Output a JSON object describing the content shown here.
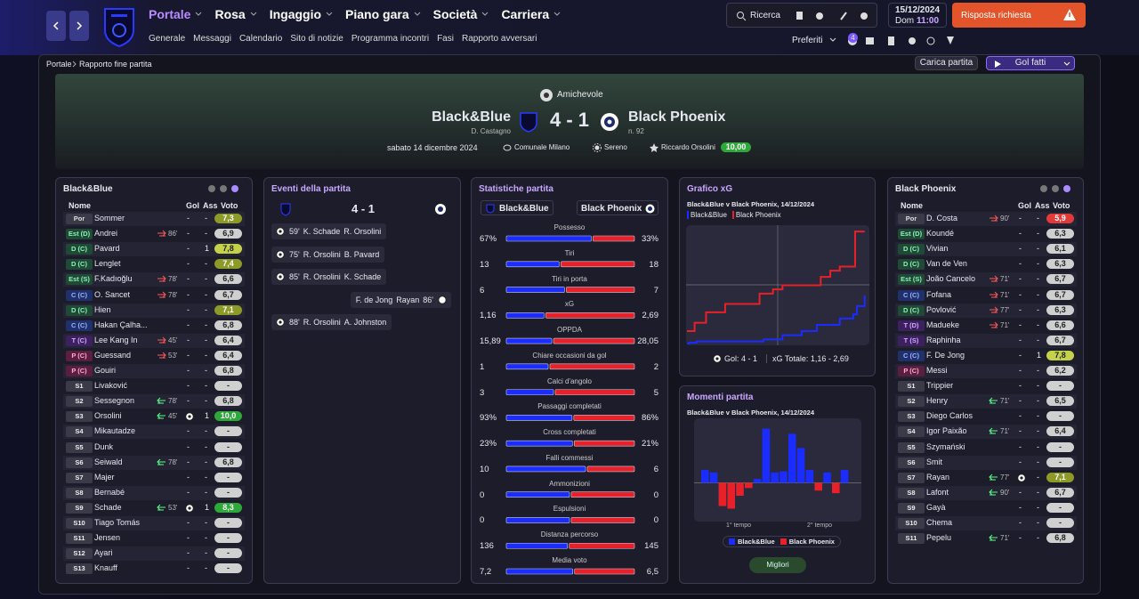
{
  "nav": {
    "menus": [
      "Portale",
      "Rosa",
      "Ingaggio",
      "Piano gara",
      "Società",
      "Carriera"
    ],
    "submenu": [
      "Generale",
      "Messaggi",
      "Calendario",
      "Sito di notizie",
      "Programma incontri",
      "Fasi",
      "Rapporto avversari"
    ],
    "search": "Ricerca",
    "date": "15/12/2024",
    "day": "Dom",
    "time": "11:00",
    "alert": "Risposta richiesta",
    "favorites": "Preferiti",
    "badge": "4"
  },
  "breadcrumb": [
    "Portale",
    "Rapporto fine partita"
  ],
  "actions": {
    "load": "Carica partita",
    "goals": "Gol fatti"
  },
  "match": {
    "competition": "Amichevole",
    "home": "Black&Blue",
    "home_manager": "D. Castagno",
    "score": "4 - 1",
    "away": "Black Phoenix",
    "away_note": "n. 92",
    "date": "sabato 14 dicembre 2024",
    "stadium": "Comunale Milano",
    "weather": "Sereno",
    "referee": "Riccardo Orsolini",
    "referee_rating": "10,00"
  },
  "home_lineup": {
    "team": "Black&Blue",
    "columns": [
      "Nome",
      "Gol",
      "Ass",
      "Voto"
    ],
    "rows": [
      {
        "pos": "Por",
        "name": "Sommer",
        "gol": "-",
        "ass": "-",
        "voto": "7,3"
      },
      {
        "pos": "Est (D)",
        "name": "Andrei",
        "sub": {
          "dir": "out",
          "minute": "86'"
        },
        "gol": "-",
        "ass": "-",
        "voto": "6,9"
      },
      {
        "pos": "D (C)",
        "name": "Pavard",
        "gol": "-",
        "ass": "1",
        "voto": "7,8"
      },
      {
        "pos": "D (C)",
        "name": "Lenglet",
        "gol": "-",
        "ass": "-",
        "voto": "7,4"
      },
      {
        "pos": "Est (S)",
        "name": "F.Kadıoğlu",
        "sub": {
          "dir": "out",
          "minute": "78'"
        },
        "gol": "-",
        "ass": "-",
        "voto": "6,6"
      },
      {
        "pos": "C (C)",
        "name": "O. Sancet",
        "sub": {
          "dir": "out",
          "minute": "78'"
        },
        "gol": "-",
        "ass": "-",
        "voto": "6,7"
      },
      {
        "pos": "D (C)",
        "name": "Hien",
        "gol": "-",
        "ass": "-",
        "voto": "7,1"
      },
      {
        "pos": "C (C)",
        "name": "Hakan Çalha...",
        "gol": "-",
        "ass": "-",
        "voto": "6,8"
      },
      {
        "pos": "T (C)",
        "name": "Lee Kang In",
        "sub": {
          "dir": "out",
          "minute": "45'"
        },
        "gol": "-",
        "ass": "-",
        "voto": "6,4"
      },
      {
        "pos": "P (C)",
        "name": "Guessand",
        "sub": {
          "dir": "out",
          "minute": "53'"
        },
        "gol": "-",
        "ass": "-",
        "voto": "6,4"
      },
      {
        "pos": "P (C)",
        "name": "Gouiri",
        "gol": "-",
        "ass": "-",
        "voto": "6,8"
      },
      {
        "pos": "S1",
        "name": "Livaković",
        "gol": "-",
        "ass": "-",
        "voto": "-"
      },
      {
        "pos": "S2",
        "name": "Sessegnon",
        "sub": {
          "dir": "in",
          "minute": "78'"
        },
        "gol": "-",
        "ass": "-",
        "voto": "6,8"
      },
      {
        "pos": "S3",
        "name": "Orsolini",
        "sub": {
          "dir": "in",
          "minute": "45'"
        },
        "goal_icon": true,
        "ass": "1",
        "voto": "10,0"
      },
      {
        "pos": "S4",
        "name": "Mikautadze",
        "gol": "-",
        "ass": "-",
        "voto": "-"
      },
      {
        "pos": "S5",
        "name": "Dunk",
        "gol": "-",
        "ass": "-",
        "voto": "-"
      },
      {
        "pos": "S6",
        "name": "Seiwald",
        "sub": {
          "dir": "in",
          "minute": "78'"
        },
        "gol": "-",
        "ass": "-",
        "voto": "6,8"
      },
      {
        "pos": "S7",
        "name": "Majer",
        "gol": "-",
        "ass": "-",
        "voto": "-"
      },
      {
        "pos": "S8",
        "name": "Bernabé",
        "gol": "-",
        "ass": "-",
        "voto": "-"
      },
      {
        "pos": "S9",
        "name": "Schade",
        "sub": {
          "dir": "in",
          "minute": "53'"
        },
        "goal_icon": true,
        "ass": "1",
        "voto": "8,3"
      },
      {
        "pos": "S10",
        "name": "Tiago Tomás",
        "gol": "-",
        "ass": "-",
        "voto": "-"
      },
      {
        "pos": "S11",
        "name": "Jensen",
        "gol": "-",
        "ass": "-",
        "voto": "-"
      },
      {
        "pos": "S12",
        "name": "Ayari",
        "gol": "-",
        "ass": "-",
        "voto": "-"
      },
      {
        "pos": "S13",
        "name": "Knauff",
        "gol": "-",
        "ass": "-",
        "voto": "-"
      }
    ]
  },
  "away_lineup": {
    "team": "Black Phoenix",
    "columns": [
      "Nome",
      "Gol",
      "Ass",
      "Voto"
    ],
    "rows": [
      {
        "pos": "Por",
        "name": "D. Costa",
        "sub": {
          "dir": "out",
          "minute": "90'"
        },
        "gol": "-",
        "ass": "-",
        "voto": "5,9"
      },
      {
        "pos": "Est (D)",
        "name": "Koundé",
        "gol": "-",
        "ass": "-",
        "voto": "6,3"
      },
      {
        "pos": "D (C)",
        "name": "Vivian",
        "gol": "-",
        "ass": "-",
        "voto": "6,1"
      },
      {
        "pos": "D (C)",
        "name": "Van de Ven",
        "gol": "-",
        "ass": "-",
        "voto": "6,3"
      },
      {
        "pos": "Est (S)",
        "name": "João Cancelo",
        "sub": {
          "dir": "out",
          "minute": "71'"
        },
        "gol": "-",
        "ass": "-",
        "voto": "6,7"
      },
      {
        "pos": "C (C)",
        "name": "Fofana",
        "sub": {
          "dir": "out",
          "minute": "71'"
        },
        "gol": "-",
        "ass": "-",
        "voto": "6,7"
      },
      {
        "pos": "D (C)",
        "name": "Povlović",
        "sub": {
          "dir": "out",
          "minute": "77'"
        },
        "gol": "-",
        "ass": "-",
        "voto": "6,3"
      },
      {
        "pos": "T (D)",
        "name": "Madueke",
        "sub": {
          "dir": "out",
          "minute": "71'"
        },
        "gol": "-",
        "ass": "-",
        "voto": "6,6"
      },
      {
        "pos": "T (S)",
        "name": "Raphinha",
        "gol": "-",
        "ass": "-",
        "voto": "6,7"
      },
      {
        "pos": "C (C)",
        "name": "F. De Jong",
        "gol": "-",
        "ass": "1",
        "voto": "7,8"
      },
      {
        "pos": "P (C)",
        "name": "Messi",
        "gol": "-",
        "ass": "-",
        "voto": "6,2"
      },
      {
        "pos": "S1",
        "name": "Trippier",
        "gol": "-",
        "ass": "-",
        "voto": "-"
      },
      {
        "pos": "S2",
        "name": "Henry",
        "sub": {
          "dir": "in",
          "minute": "71'"
        },
        "gol": "-",
        "ass": "-",
        "voto": "6,5"
      },
      {
        "pos": "S3",
        "name": "Diego Carlos",
        "gol": "-",
        "ass": "-",
        "voto": "-"
      },
      {
        "pos": "S4",
        "name": "Igor Paixão",
        "sub": {
          "dir": "in",
          "minute": "71'"
        },
        "gol": "-",
        "ass": "-",
        "voto": "6,4"
      },
      {
        "pos": "S5",
        "name": "Szymański",
        "gol": "-",
        "ass": "-",
        "voto": "-"
      },
      {
        "pos": "S6",
        "name": "Smit",
        "gol": "-",
        "ass": "-",
        "voto": "-"
      },
      {
        "pos": "S7",
        "name": "Rayan",
        "sub": {
          "dir": "in",
          "minute": "77'"
        },
        "goal_icon": true,
        "ass": "-",
        "voto": "7,1"
      },
      {
        "pos": "S8",
        "name": "Lafont",
        "sub": {
          "dir": "in",
          "minute": "90'"
        },
        "gol": "-",
        "ass": "-",
        "voto": "6,7"
      },
      {
        "pos": "S9",
        "name": "Gayà",
        "gol": "-",
        "ass": "-",
        "voto": "-"
      },
      {
        "pos": "S10",
        "name": "Chema",
        "gol": "-",
        "ass": "-",
        "voto": "-"
      },
      {
        "pos": "S11",
        "name": "Pepelu",
        "sub": {
          "dir": "in",
          "minute": "71'"
        },
        "gol": "-",
        "ass": "-",
        "voto": "6,8"
      }
    ]
  },
  "events": {
    "title": "Eventi della partita",
    "score": "4 - 1",
    "rows": [
      {
        "minute": "59'",
        "scorer": "K. Schade",
        "assist": "R. Orsolini",
        "side": "home"
      },
      {
        "minute": "75'",
        "scorer": "R. Orsolini",
        "assist": "B. Pavard",
        "side": "home"
      },
      {
        "minute": "85'",
        "scorer": "R. Orsolini",
        "assist": "K. Schade",
        "side": "home"
      },
      {
        "minute": "86'",
        "scorer": "F. de Jong",
        "assist": "Rayan",
        "side": "away"
      },
      {
        "minute": "88'",
        "scorer": "R. Orsolini",
        "assist": "A. Johnston",
        "side": "home"
      }
    ]
  },
  "stats": {
    "title": "Statistiche partita",
    "home": "Black&Blue",
    "away": "Black Phoenix",
    "home_color": "#1a2cff",
    "away_color": "#e8202a",
    "rows": [
      {
        "label": "Possesso",
        "home": 67,
        "away": 33,
        "home_label": "67%",
        "away_label": "33%"
      },
      {
        "label": "Tiri",
        "home": 13,
        "away": 18
      },
      {
        "label": "Tiri in porta",
        "home": 6,
        "away": 7
      },
      {
        "label": "xG",
        "home": 1.16,
        "away": 2.69,
        "home_label": "1,16",
        "away_label": "2,69"
      },
      {
        "label": "OPPDA",
        "home": 15.89,
        "away": 28.05,
        "home_label": "15,89",
        "away_label": "28,05"
      },
      {
        "label": "Chiare occasioni da gol",
        "home": 1,
        "away": 2
      },
      {
        "label": "Calci d'angolo",
        "home": 3,
        "away": 5
      },
      {
        "label": "Passaggi completati",
        "home": 93,
        "away": 86,
        "home_label": "93%",
        "away_label": "86%"
      },
      {
        "label": "Cross completati",
        "home": 23,
        "away": 21,
        "home_label": "23%",
        "away_label": "21%"
      },
      {
        "label": "Falli commessi",
        "home": 10,
        "away": 6
      },
      {
        "label": "Ammonizioni",
        "home": 0,
        "away": 0
      },
      {
        "label": "Espulsioni",
        "home": 0,
        "away": 0
      },
      {
        "label": "Distanza percorso",
        "home": 136,
        "away": 145
      },
      {
        "label": "Media voto",
        "home": 7.2,
        "away": 6.5,
        "home_label": "7,2",
        "away_label": "6,5"
      }
    ]
  },
  "chart_data": [
    {
      "type": "line",
      "title": "Grafico xG",
      "subtitle": "Black&Blue v Black Phoenix, 14/12/2024",
      "xlim": [
        0,
        95
      ],
      "ylim": [
        0,
        2.8
      ],
      "series": [
        {
          "name": "Black&Blue",
          "color": "#1a2cff",
          "x": [
            0,
            1,
            5,
            40,
            50,
            60,
            68,
            80,
            87,
            89,
            93
          ],
          "values": [
            0,
            0.02,
            0.05,
            0.1,
            0.2,
            0.3,
            0.45,
            0.6,
            0.7,
            0.9,
            1.16
          ]
        },
        {
          "name": "Black Phoenix",
          "color": "#e8202a",
          "x": [
            0,
            4,
            10,
            20,
            38,
            45,
            50,
            70,
            75,
            80,
            88,
            93
          ],
          "values": [
            0.3,
            0.5,
            0.75,
            0.95,
            1.2,
            1.3,
            1.4,
            1.6,
            1.75,
            1.85,
            2.69,
            2.69
          ]
        }
      ],
      "goals_label": "Gol: 4 - 1",
      "total_label": "xG Totale: 1,16 - 2,69"
    },
    {
      "type": "bar",
      "title": "Momenti partita",
      "subtitle": "Black&Blue v Black Phoenix, 14/12/2024",
      "ylim": [
        -30,
        50
      ],
      "series": [
        {
          "name": "Black&Blue",
          "color": "#1a2cff",
          "values": [
            10,
            8,
            null,
            null,
            null,
            null,
            3,
            42,
            8,
            9,
            38,
            27,
            10,
            null,
            8,
            null,
            10
          ]
        },
        {
          "name": "Black Phoenix",
          "color": "#e8202a",
          "values": [
            null,
            null,
            -18,
            -20,
            -10,
            -4,
            null,
            null,
            null,
            null,
            null,
            null,
            null,
            -6,
            null,
            -8,
            null
          ]
        }
      ],
      "half_labels": [
        "1° tempo",
        "2° tempo"
      ],
      "button": "Migliori"
    }
  ]
}
